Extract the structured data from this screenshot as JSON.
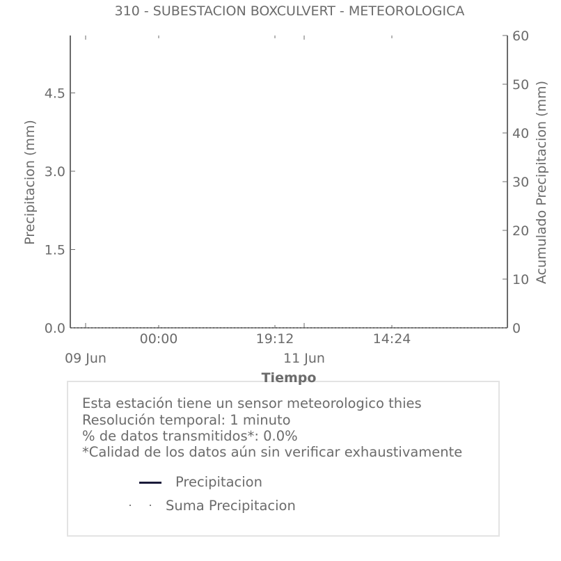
{
  "chart_data": {
    "type": "line",
    "title": "310 - SUBESTACION BOXCULVERT - METEOROLOGICA",
    "xlabel": "Tiempo",
    "ylabel_left": "Precipitacion (mm)",
    "ylabel_right": "Acumulado Precipitacion (mm)",
    "x_ticks_major": [
      "09 Jun",
      "11 Jun"
    ],
    "x_ticks_minor": [
      "00:00",
      "19:12",
      "14:24"
    ],
    "ylim_left": [
      0,
      5.6
    ],
    "yticks_left": [
      "0.0",
      "1.5",
      "3.0",
      "4.5"
    ],
    "ylim_right": [
      0,
      60
    ],
    "yticks_right": [
      "0",
      "10",
      "20",
      "30",
      "40",
      "50",
      "60"
    ],
    "series": [
      {
        "name": "Precipitacion",
        "axis": "left",
        "color": "#1b1b3a",
        "style": "solid",
        "values": []
      },
      {
        "name": "Suma Precipitacion",
        "axis": "right",
        "color": "#555555",
        "style": "dotted",
        "values": [
          0,
          0
        ]
      }
    ]
  },
  "info": {
    "line1": "Esta estación tiene un sensor meteorologico thies",
    "line2": "Resolución temporal: 1 minuto",
    "line3": "% de datos transmitidos*: 0.0%",
    "line4": "*Calidad de los datos aún sin verificar exhaustivamente"
  },
  "legend": {
    "item1": "Precipitacion",
    "item2": "Suma Precipitacion"
  }
}
